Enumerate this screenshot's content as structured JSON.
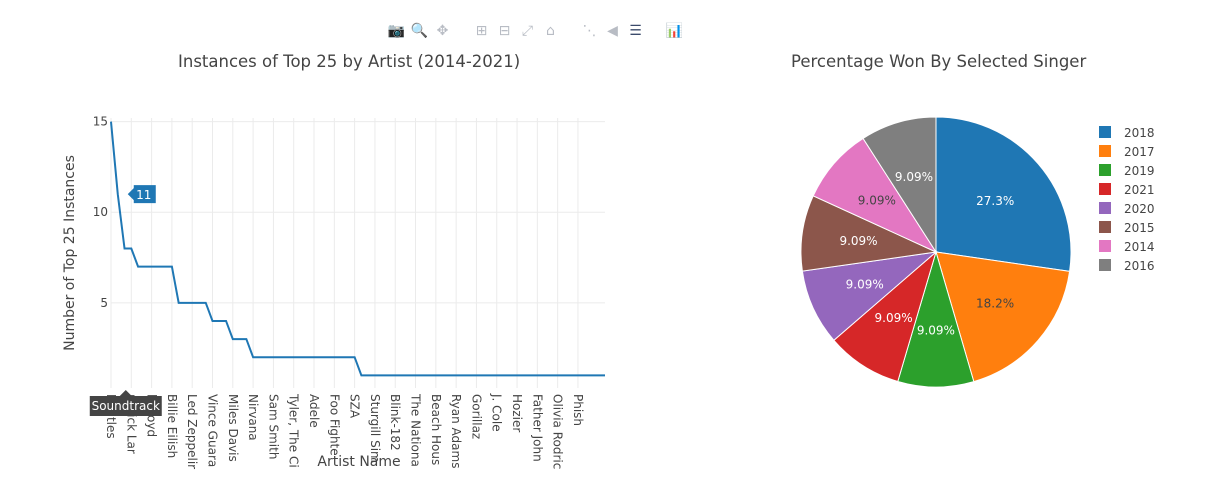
{
  "toolbar": {
    "buttons": [
      {
        "name": "camera-icon",
        "glyph": "📷",
        "active": false
      },
      {
        "name": "zoom-icon",
        "glyph": "🔍",
        "active": true
      },
      {
        "name": "pan-icon",
        "glyph": "✥",
        "active": false
      },
      {
        "name": "zoom-in-icon",
        "glyph": "⊞",
        "active": false
      },
      {
        "name": "zoom-out-icon",
        "glyph": "⊟",
        "active": false
      },
      {
        "name": "autoscale-icon",
        "glyph": "⤢",
        "active": false
      },
      {
        "name": "home-icon",
        "glyph": "⌂",
        "active": false
      },
      {
        "name": "spike-lines-icon",
        "glyph": "⋱",
        "active": false
      },
      {
        "name": "hover-closest-icon",
        "glyph": "◀",
        "active": false
      },
      {
        "name": "hover-compare-icon",
        "glyph": "☰",
        "active": true
      },
      {
        "name": "plotly-logo-icon",
        "glyph": "📊",
        "active": true
      }
    ]
  },
  "chart_data": [
    {
      "type": "line",
      "title": "Instances of Top 25 by Artist (2014-2021)",
      "xlabel": "Artist Name",
      "ylabel": "Number of Top 25 Instances",
      "ylim": [
        0.3,
        15.2
      ],
      "yticks": [
        5,
        10,
        15
      ],
      "grid": true,
      "color": "#1f77b4",
      "tick_labels": [
        "Beatles",
        "Kendrick Lamar",
        "Pink Floyd",
        "Billie Eilish",
        "Led Zeppelin",
        "Vince Guaraldi",
        "Miles Davis",
        "Nirvana",
        "Sam Smith",
        "Tyler, The Creator",
        "Adele",
        "Foo Fighters",
        "SZA",
        "Sturgill Simpson",
        "Blink-182",
        "The National",
        "Beach House",
        "Ryan Adams",
        "Gorillaz",
        "J. Cole",
        "Hozier",
        "Father John Misty",
        "Olivia Rodrigo",
        "Phish"
      ],
      "tick_labels_shown": [
        "Beatles",
        "ndrick Lar",
        "k Floyd",
        "Billie Eilish",
        "Led Zeppelir",
        "Vince Guara",
        "Miles Davis",
        "Nirvana",
        "Sam Smith",
        "Tyler, The Ci",
        "Adele",
        "Foo Fighte",
        "SZA",
        "Sturgill Sim",
        "Blink-182",
        "The Nationa",
        "Beach Hous",
        "Ryan Adams",
        "Gorillaz",
        "J. Cole",
        "Hozier",
        "Father John",
        "Olivia Rodric",
        "Phish"
      ],
      "y": [
        15,
        11,
        8,
        8,
        7,
        7,
        7,
        7,
        7,
        7,
        5,
        5,
        5,
        5,
        5,
        4,
        4,
        4,
        3,
        3,
        3,
        2,
        2,
        2,
        2,
        2,
        2,
        2,
        2,
        2,
        2,
        2,
        2,
        2,
        2,
        2,
        2,
        1,
        1,
        1,
        1,
        1,
        1,
        1,
        1,
        1,
        1,
        1,
        1,
        1,
        1,
        1,
        1,
        1,
        1,
        1,
        1,
        1,
        1,
        1,
        1,
        1,
        1,
        1,
        1,
        1,
        1,
        1,
        1,
        1,
        1,
        1,
        1,
        1
      ],
      "hover": {
        "x_label": "Soundtrack",
        "y_value": "11"
      }
    },
    {
      "type": "pie",
      "title": "Percentage Won By Selected Singer",
      "legend_position": "right",
      "slices": [
        {
          "label": "2018",
          "value": 27.3,
          "text": "27.3%",
          "color": "#1f77b4",
          "text_color": "#ffffff"
        },
        {
          "label": "2017",
          "value": 18.2,
          "text": "18.2%",
          "color": "#ff7f0e",
          "text_color": "#444444"
        },
        {
          "label": "2019",
          "value": 9.09,
          "text": "9.09%",
          "color": "#2ca02c",
          "text_color": "#ffffff"
        },
        {
          "label": "2021",
          "value": 9.09,
          "text": "9.09%",
          "color": "#d62728",
          "text_color": "#ffffff"
        },
        {
          "label": "2020",
          "value": 9.09,
          "text": "9.09%",
          "color": "#9467bd",
          "text_color": "#ffffff"
        },
        {
          "label": "2015",
          "value": 9.09,
          "text": "9.09%",
          "color": "#8c564b",
          "text_color": "#ffffff"
        },
        {
          "label": "2014",
          "value": 9.09,
          "text": "9.09%",
          "color": "#e377c2",
          "text_color": "#444444"
        },
        {
          "label": "2016",
          "value": 9.09,
          "text": "9.09%",
          "color": "#7f7f7f",
          "text_color": "#ffffff"
        }
      ]
    }
  ]
}
